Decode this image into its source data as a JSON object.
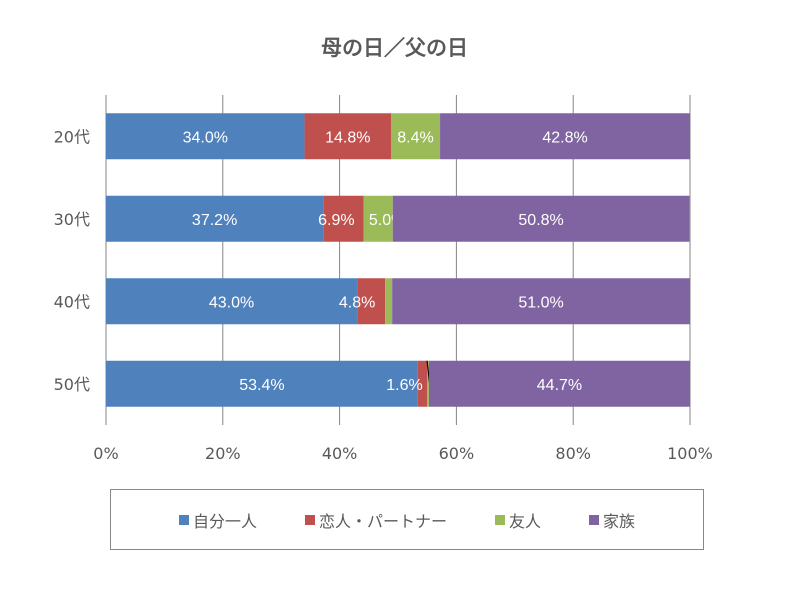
{
  "chart_data": {
    "type": "bar",
    "orientation": "horizontal",
    "stacked": "percent",
    "title": "母の日／父の日",
    "categories": [
      "20代",
      "30代",
      "40代",
      "50代"
    ],
    "series": [
      {
        "name": "自分一人",
        "color": "#4f81bd",
        "values": [
          34.0,
          37.2,
          43.0,
          53.4
        ],
        "labels": [
          "34.0%",
          "37.2%",
          "43.0%",
          "53.4%"
        ]
      },
      {
        "name": "恋人・パートナー",
        "color": "#c0504d",
        "values": [
          14.8,
          6.9,
          4.8,
          1.6
        ],
        "labels": [
          "14.8%",
          "6.9%",
          "4.8%",
          "1.6%"
        ]
      },
      {
        "name": "友人",
        "color": "#9bbb59",
        "values": [
          8.4,
          5.0,
          1.2,
          0.3
        ],
        "labels": [
          "8.4%",
          "5.0%",
          "1.2%",
          "0.3%"
        ]
      },
      {
        "name": "家族",
        "color": "#8064a2",
        "values": [
          42.8,
          50.8,
          51.0,
          44.7
        ],
        "labels": [
          "42.8%",
          "50.8%",
          "51.0%",
          "44.7%"
        ]
      }
    ],
    "xlim": [
      0,
      100
    ],
    "xticks": [
      "0%",
      "20%",
      "40%",
      "60%",
      "80%",
      "100%"
    ],
    "grid": true,
    "legend": "bottom"
  }
}
